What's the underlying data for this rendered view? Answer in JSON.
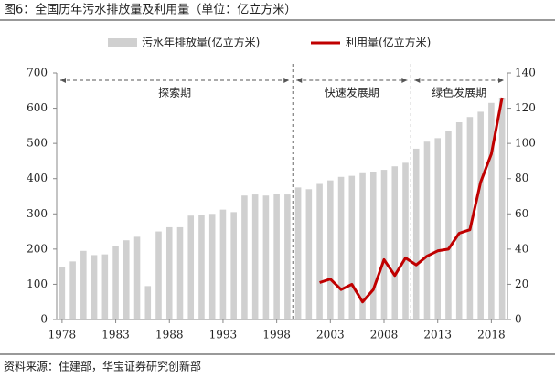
{
  "chart_data": {
    "type": "combo",
    "title": "图6：全国历年污水排放量及利用量（单位：亿立方米）",
    "source": "资料来源：住建部，华宝证券研究创新部",
    "periods": [
      "探索期",
      "快速发展期",
      "绿色发展期"
    ],
    "categories": [
      "1978",
      null,
      null,
      null,
      null,
      "1983",
      null,
      null,
      null,
      null,
      "1988",
      null,
      null,
      null,
      null,
      "1993",
      null,
      null,
      null,
      null,
      "1998",
      null,
      null,
      null,
      null,
      "2003",
      null,
      null,
      null,
      null,
      "2008",
      null,
      null,
      null,
      null,
      "2013",
      null,
      null,
      null,
      null,
      "2018",
      null
    ],
    "series": [
      {
        "name": "污水年排放量(亿立方米)",
        "type": "bar",
        "color": "#d0d0d0",
        "values": [
          150,
          165,
          195,
          183,
          185,
          208,
          225,
          235,
          95,
          250,
          262,
          262,
          295,
          298,
          300,
          312,
          305,
          352,
          355,
          352,
          356,
          355,
          375,
          370,
          385,
          395,
          405,
          408,
          418,
          420,
          425,
          435,
          445,
          485,
          505,
          515,
          535,
          560,
          575,
          590,
          615,
          630
        ]
      },
      {
        "name": "利用量(亿立方米)",
        "type": "line",
        "axis": "y2",
        "color": "#c00000",
        "values": [
          null,
          null,
          null,
          null,
          null,
          null,
          null,
          null,
          null,
          null,
          null,
          null,
          null,
          null,
          null,
          null,
          null,
          null,
          null,
          null,
          null,
          null,
          null,
          null,
          21,
          23,
          17,
          20,
          10,
          17,
          34,
          25,
          35,
          31,
          36,
          39,
          40,
          49,
          51,
          78,
          94,
          126
        ]
      }
    ],
    "ylim": [
      0,
      700
    ],
    "yticks": [
      0,
      100,
      200,
      300,
      400,
      500,
      600,
      700
    ],
    "y2lim": [
      0,
      140
    ],
    "y2ticks": [
      0,
      20,
      40,
      60,
      80,
      100,
      120,
      140
    ]
  }
}
